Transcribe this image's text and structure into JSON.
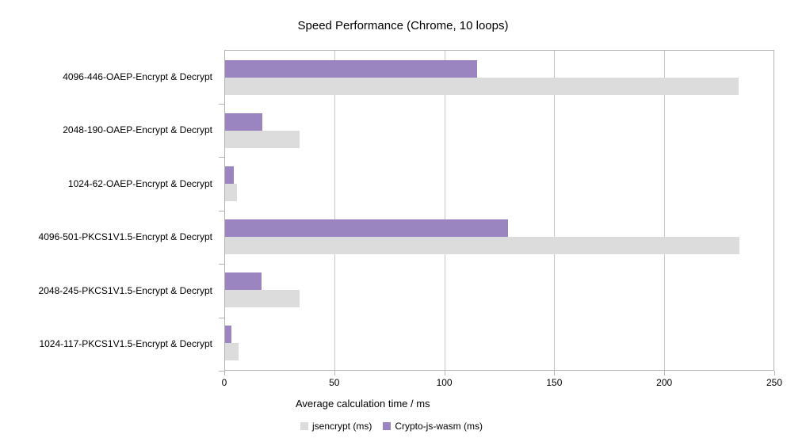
{
  "chart_data": {
    "type": "bar",
    "orientation": "horizontal",
    "title": "Speed Performance (Chrome, 10 loops)",
    "xlabel": "Average calculation time / ms",
    "xlim": [
      0,
      250
    ],
    "xticks": [
      0,
      50,
      100,
      150,
      200,
      250
    ],
    "grid": "vertical",
    "legend_position": "bottom",
    "categories": [
      "4096-446-OAEP-Encrypt & Decrypt",
      "2048-190-OAEP-Encrypt & Decrypt",
      "1024-62-OAEP-Encrypt & Decrypt",
      "4096-501-PKCS1V1.5-Encrypt & Decrypt",
      "2048-245-PKCS1V1.5-Encrypt & Decrypt",
      "1024-117-PKCS1V1.5-Encrypt & Decrypt"
    ],
    "series": [
      {
        "name": "jsencrypt (ms)",
        "color": "#dcdcdc",
        "values": [
          234,
          34,
          5.5,
          234.5,
          34,
          6
        ]
      },
      {
        "name": "Crypto-js-wasm (ms)",
        "color": "#9a85c0",
        "values": [
          115,
          17,
          4,
          129,
          16.5,
          3
        ]
      }
    ],
    "colors": {
      "axis": "#b3b3b3",
      "gridline": "#c6c6c6",
      "text": "#000000",
      "background": "#ffffff"
    }
  }
}
